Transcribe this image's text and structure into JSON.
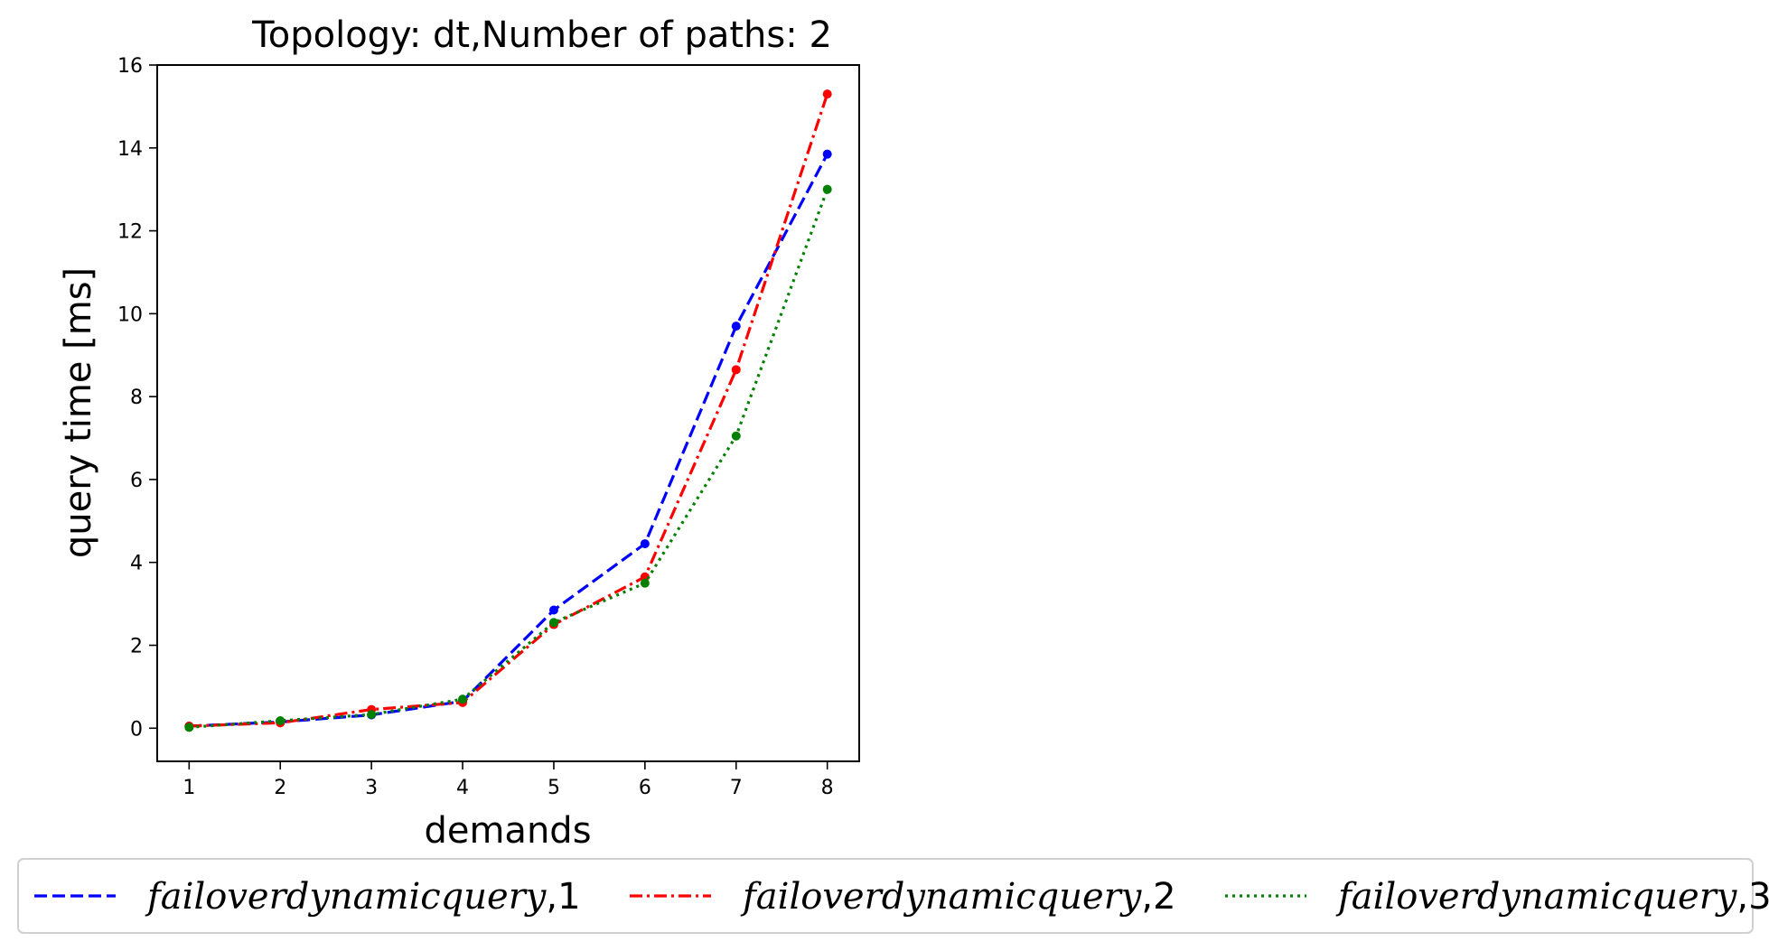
{
  "chart_data": {
    "type": "line",
    "title": "Topology: dt,Number of paths: 2",
    "xlabel": "demands",
    "ylabel": "query time [ms]",
    "x": [
      1,
      2,
      3,
      4,
      5,
      6,
      7,
      8
    ],
    "xlim": [
      0.65,
      8.35
    ],
    "ylim": [
      -0.8,
      16.0
    ],
    "xticks": [
      "1",
      "2",
      "3",
      "4",
      "5",
      "6",
      "7",
      "8"
    ],
    "yticks": [
      "0",
      "2",
      "4",
      "6",
      "8",
      "10",
      "12",
      "14",
      "16"
    ],
    "grid": false,
    "legend_placement": "bottom",
    "series": [
      {
        "name": "failoverdynamicquery",
        "suffix": ",1",
        "color": "#0000ff",
        "dash": "dashed",
        "values": [
          0.05,
          0.15,
          0.32,
          0.65,
          2.85,
          4.45,
          9.7,
          13.85
        ]
      },
      {
        "name": "failoverdynamicquery",
        "suffix": ",2",
        "color": "#ff0000",
        "dash": "dashdot",
        "values": [
          0.05,
          0.13,
          0.45,
          0.62,
          2.5,
          3.65,
          8.65,
          15.3
        ]
      },
      {
        "name": "failoverdynamicquery",
        "suffix": ",3",
        "color": "#008000",
        "dash": "dotted",
        "values": [
          0.02,
          0.18,
          0.33,
          0.7,
          2.55,
          3.5,
          7.05,
          13.0
        ]
      }
    ]
  }
}
